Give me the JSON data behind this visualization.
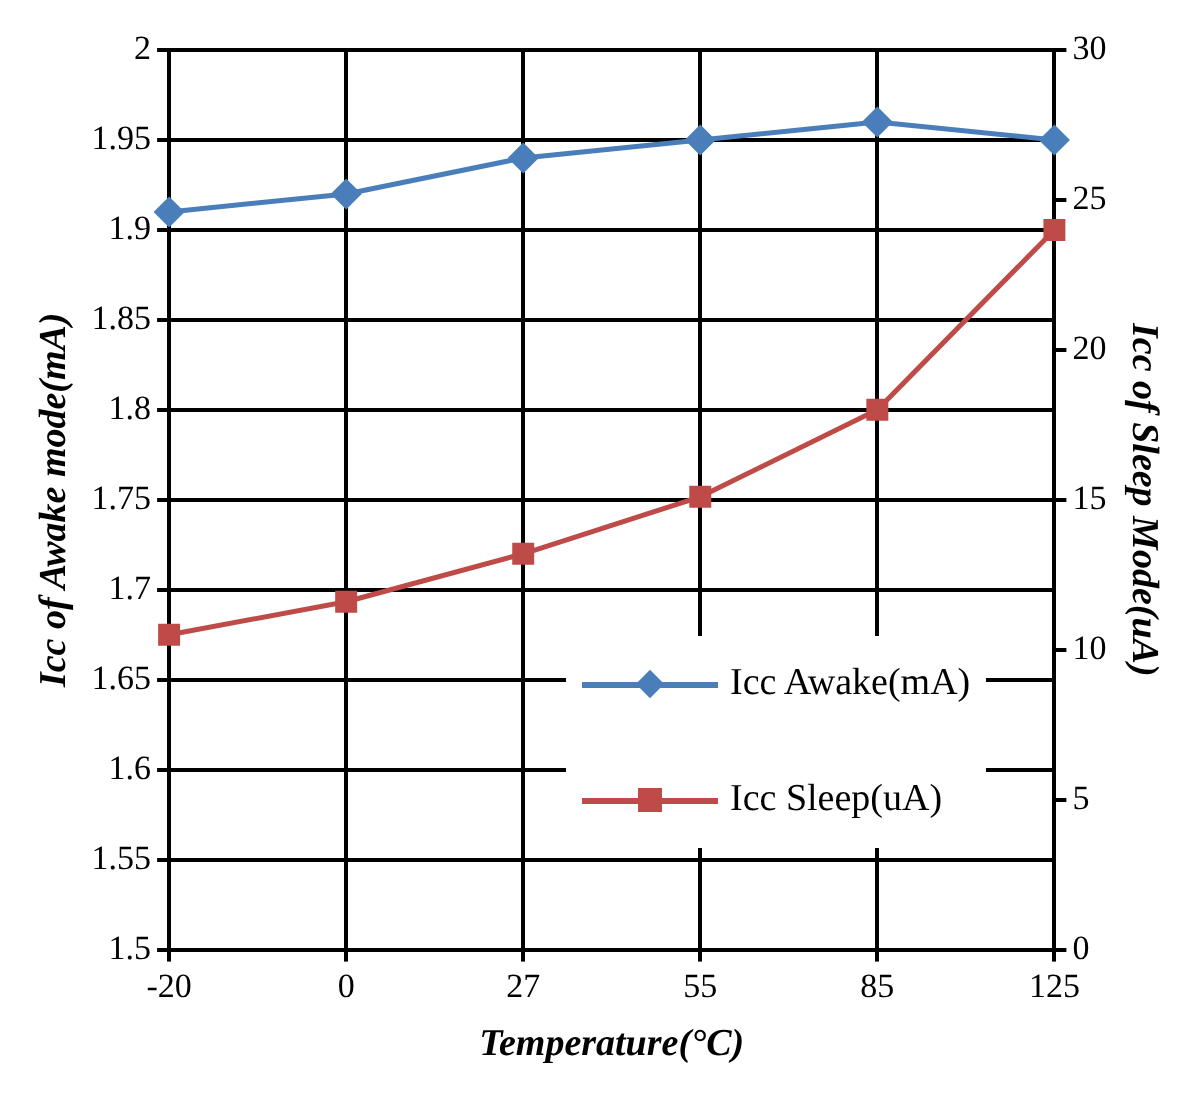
{
  "chart_data": {
    "type": "line",
    "xlabel": "Temperature(°C)",
    "ylabel": "Icc of Awake mode(mA)",
    "y2label": "Icc of Sleep Mode(uA)",
    "categories": [
      "-20",
      "0",
      "27",
      "55",
      "85",
      "125"
    ],
    "series": [
      {
        "name": "Icc Awake(mA)",
        "color": "#4a7ebb",
        "marker": "diamond",
        "values": [
          1.91,
          1.92,
          1.94,
          1.95,
          1.96,
          1.95
        ]
      },
      {
        "name": "Icc Sleep(uA)",
        "color": "#be4b48",
        "marker": "square",
        "axis": "y2",
        "values": [
          10.5,
          11.6,
          13.2,
          15.1,
          18.0,
          24.0
        ]
      }
    ],
    "ylim": [
      1.5,
      2
    ],
    "yticks": [
      1.5,
      1.55,
      1.6,
      1.65,
      1.7,
      1.75,
      1.8,
      1.85,
      1.9,
      1.95,
      2
    ],
    "y2lim": [
      0,
      30
    ],
    "y2ticks": [
      0,
      5,
      10,
      15,
      20,
      25,
      30
    ],
    "grid": true,
    "legend": "bottom right",
    "line_style": "solid"
  }
}
